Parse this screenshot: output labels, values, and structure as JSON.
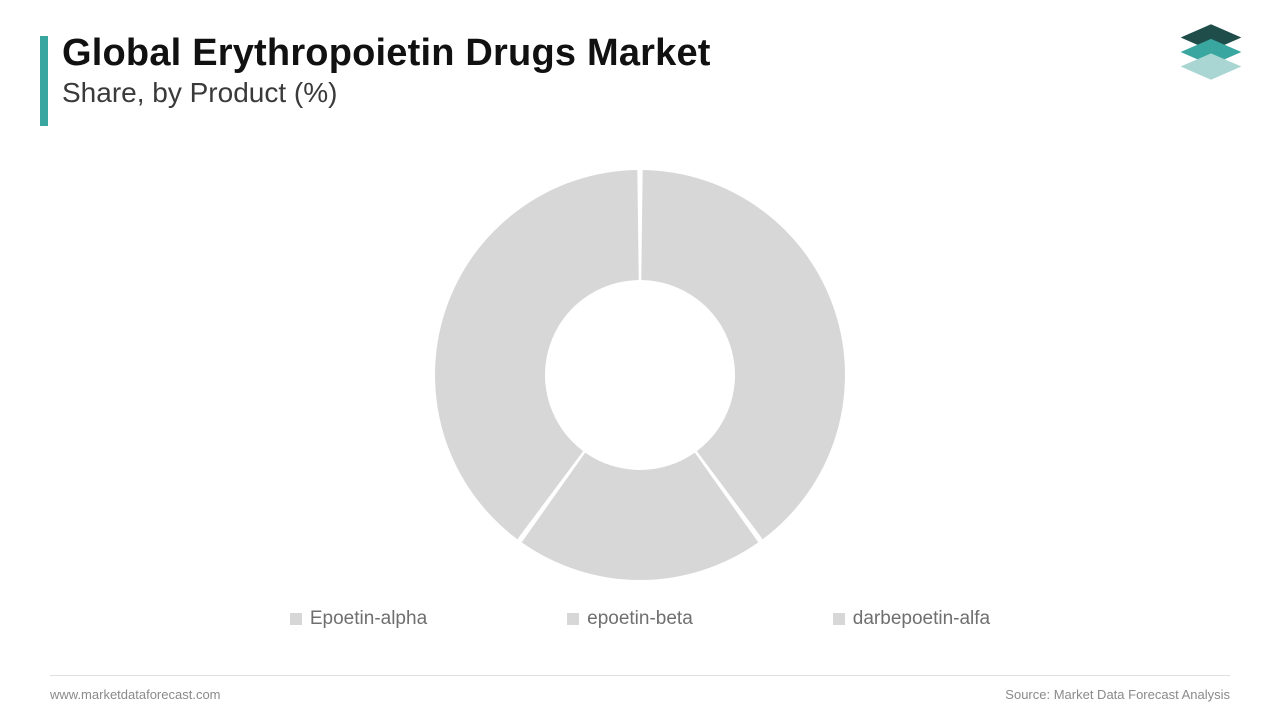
{
  "header": {
    "title": "Global Erythropoietin Drugs Market",
    "subtitle": "Share, by Product (%)",
    "accent_color": "#3aa6a0",
    "title_color": "#111111",
    "subtitle_color": "#3a3a3a",
    "title_fontsize": 38,
    "subtitle_fontsize": 28
  },
  "logo": {
    "top_color": "#1f4d4a",
    "mid_color": "#3aa6a0",
    "bottom_color": "#a9d6d2"
  },
  "chart": {
    "type": "donut",
    "outer_radius": 205,
    "inner_radius": 95,
    "gap_deg": 1.5,
    "background_color": "#ffffff",
    "slice_color": "#d7d7d7",
    "separator_color": "#ffffff",
    "series": [
      {
        "label": "Epoetin-alpha",
        "value": 40,
        "color": "#d7d7d7"
      },
      {
        "label": "epoetin-beta",
        "value": 20,
        "color": "#d7d7d7"
      },
      {
        "label": "darbepoetin-alfa",
        "value": 40,
        "color": "#d7d7d7"
      }
    ]
  },
  "legend": {
    "items": [
      {
        "label": "Epoetin-alpha",
        "color": "#d7d7d7"
      },
      {
        "label": "epoetin-beta",
        "color": "#d7d7d7"
      },
      {
        "label": "darbepoetin-alfa",
        "color": "#d7d7d7"
      }
    ],
    "text_color": "#6f6f6f",
    "fontsize": 19
  },
  "footer": {
    "left": "www.marketdataforecast.com",
    "right": "Source: Market Data Forecast Analysis",
    "text_color": "#8a8a8a",
    "fontsize": 13
  }
}
